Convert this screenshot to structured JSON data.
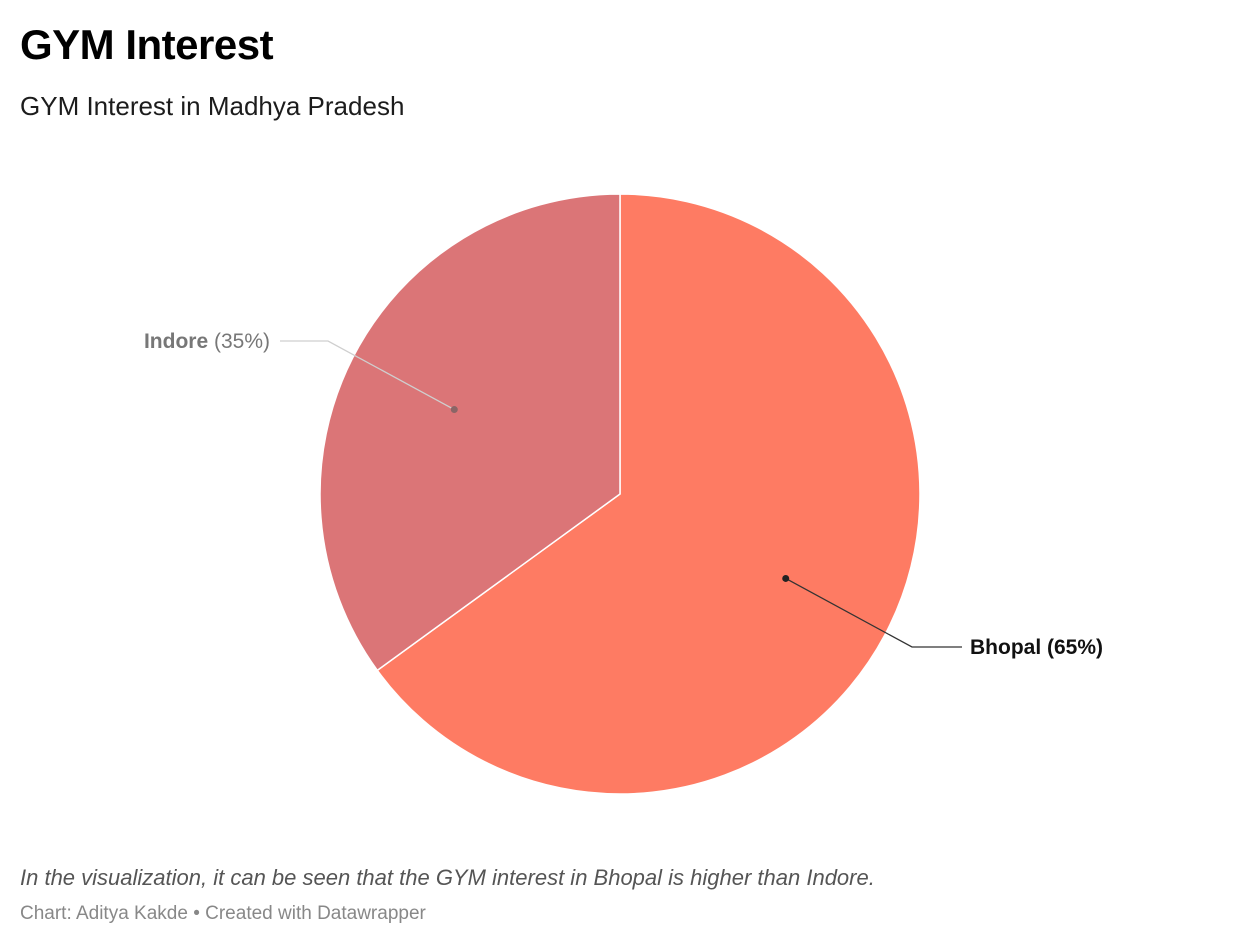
{
  "header": {
    "title": "GYM Interest",
    "subtitle": "GYM Interest in Madhya Pradesh"
  },
  "chart_data": {
    "type": "pie",
    "title": "GYM Interest",
    "subtitle": "GYM Interest in Madhya Pradesh",
    "slices": [
      {
        "label": "Bhopal",
        "value": 65,
        "percent_label": "(65%)",
        "color": "#fe7b63"
      },
      {
        "label": "Indore",
        "value": 35,
        "percent_label": "(35%)",
        "color": "#db7577"
      }
    ],
    "start_angle_deg": 0,
    "direction": "clockwise",
    "legend": "none"
  },
  "footer": {
    "note": "In the visualization, it can be seen that the GYM interest in Bhopal is higher than Indore.",
    "credit": "Chart: Aditya Kakde • Created with Datawrapper"
  }
}
